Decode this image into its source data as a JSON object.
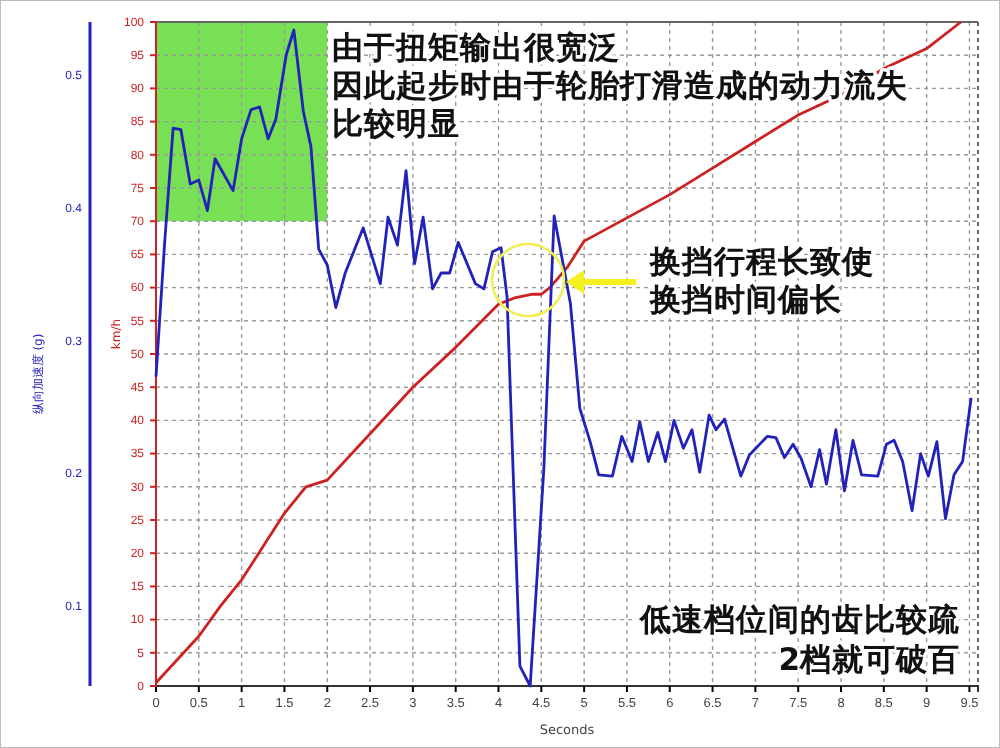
{
  "chart_data": {
    "type": "line",
    "xlabel": "Seconds",
    "ylabel": "km/h",
    "y2label": "纵向加速度 (g)",
    "annotations": [
      "由于扭矩输出很宽泛",
      "因此起步时由于轮胎打滑造成的动力流失",
      "比较明显",
      "换挡行程长致使",
      "换挡时间偏长",
      "低速档位间的齿比较疏",
      "2档就可破百"
    ],
    "xlim": [
      0,
      9.6
    ],
    "xticks": [
      0,
      0.5,
      1,
      1.5,
      2,
      2.5,
      3,
      3.5,
      4,
      4.5,
      5,
      5.5,
      6,
      6.5,
      7,
      7.5,
      8,
      8.5,
      9,
      9.5
    ],
    "ylim": [
      0,
      100
    ],
    "yticks": [
      0,
      5,
      10,
      15,
      20,
      25,
      30,
      35,
      40,
      45,
      50,
      55,
      60,
      65,
      70,
      75,
      80,
      85,
      90,
      95,
      100
    ],
    "y2lim": [
      0.04,
      0.54
    ],
    "y2ticks": [
      0.1,
      0.2,
      0.3,
      0.4,
      0.5
    ],
    "grid": true,
    "marker": "none",
    "line_style": "solid",
    "series": [
      {
        "color": "#cc2222",
        "x": [
          0,
          0.25,
          0.5,
          0.75,
          1,
          1.25,
          1.5,
          1.75,
          2,
          2.5,
          3,
          3.5,
          4,
          4.1,
          4.2,
          4.4,
          4.5,
          4.6,
          4.8,
          5,
          5.5,
          6,
          6.5,
          7,
          7.5,
          8,
          8.5,
          9,
          9.4
        ],
        "values": [
          0.5,
          4,
          7.5,
          12,
          16,
          21,
          26,
          30,
          31,
          38,
          45,
          51,
          57.5,
          58,
          58.5,
          59,
          59,
          60,
          63,
          67,
          70.5,
          74,
          78,
          82,
          86,
          89,
          93,
          96,
          100
        ]
      },
      {
        "color": "#2222bb",
        "axis": "y2",
        "x": [
          0,
          0.1,
          0.2,
          0.29,
          0.4,
          0.5,
          0.6,
          0.69,
          0.9,
          1.0,
          1.11,
          1.21,
          1.31,
          1.4,
          1.52,
          1.61,
          1.72,
          1.81,
          1.9,
          2.0,
          2.1,
          2.21,
          2.42,
          2.62,
          2.71,
          2.82,
          2.92,
          3.02,
          3.12,
          3.23,
          3.33,
          3.43,
          3.53,
          3.73,
          3.83,
          3.93,
          4.03,
          4.1,
          4.25,
          4.37,
          4.53,
          4.65,
          4.84,
          4.95,
          5.07,
          5.17,
          5.33,
          5.44,
          5.56,
          5.65,
          5.75,
          5.86,
          5.95,
          6.05,
          6.16,
          6.26,
          6.35,
          6.46,
          6.54,
          6.64,
          6.83,
          6.93,
          7.14,
          7.24,
          7.34,
          7.44,
          7.53,
          7.65,
          7.75,
          7.83,
          7.94,
          8.04,
          8.14,
          8.24,
          8.43,
          8.53,
          8.62,
          8.72,
          8.83,
          8.93,
          9.02,
          9.12,
          9.22,
          9.32,
          9.42,
          9.52
        ],
        "values": [
          0.273,
          0.373,
          0.46,
          0.459,
          0.418,
          0.421,
          0.398,
          0.437,
          0.413,
          0.452,
          0.474,
          0.476,
          0.452,
          0.467,
          0.515,
          0.534,
          0.473,
          0.446,
          0.369,
          0.357,
          0.325,
          0.351,
          0.385,
          0.343,
          0.393,
          0.372,
          0.428,
          0.358,
          0.393,
          0.339,
          0.351,
          0.351,
          0.374,
          0.343,
          0.339,
          0.367,
          0.37,
          0.333,
          0.055,
          0.04,
          0.204,
          0.394,
          0.328,
          0.249,
          0.224,
          0.199,
          0.198,
          0.228,
          0.209,
          0.239,
          0.209,
          0.231,
          0.209,
          0.24,
          0.219,
          0.233,
          0.201,
          0.244,
          0.233,
          0.241,
          0.198,
          0.214,
          0.228,
          0.227,
          0.212,
          0.222,
          0.212,
          0.19,
          0.218,
          0.192,
          0.233,
          0.187,
          0.225,
          0.199,
          0.198,
          0.222,
          0.225,
          0.209,
          0.172,
          0.215,
          0.198,
          0.224,
          0.166,
          0.199,
          0.209,
          0.257
        ]
      }
    ]
  }
}
